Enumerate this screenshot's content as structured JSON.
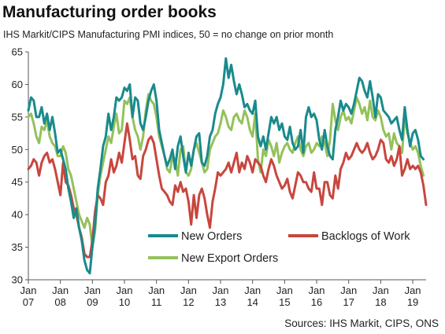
{
  "title": "Manufacturing order books",
  "subtitle": "IHS Markit/CIPS Manufacturing PMI indices, 50 = no change on prior month",
  "source": "Sources: IHS Markit, CIPS, ONS",
  "chart_data": {
    "type": "line",
    "title": "Manufacturing order books",
    "subtitle": "IHS Markit/CIPS Manufacturing PMI indices, 50 = no change on prior month",
    "xlabel": "",
    "ylabel": "",
    "ylim": [
      30,
      65
    ],
    "yticks": [
      30,
      35,
      40,
      45,
      50,
      55,
      60,
      65
    ],
    "x_start": "2007-01",
    "x_end": "2019-06",
    "x_ticks": [
      {
        "top": "Jan",
        "bottom": "07"
      },
      {
        "top": "Jan",
        "bottom": "08"
      },
      {
        "top": "Jan",
        "bottom": "09"
      },
      {
        "top": "Jan",
        "bottom": "10"
      },
      {
        "top": "Jan",
        "bottom": "11"
      },
      {
        "top": "Jan",
        "bottom": "12"
      },
      {
        "top": "Jan",
        "bottom": "13"
      },
      {
        "top": "Jan",
        "bottom": "14"
      },
      {
        "top": "Jan",
        "bottom": "15"
      },
      {
        "top": "Jan",
        "bottom": "16"
      },
      {
        "top": "Jan",
        "bottom": "17"
      },
      {
        "top": "Jan",
        "bottom": "18"
      },
      {
        "top": "Jan",
        "bottom": "19"
      }
    ],
    "grid": false,
    "legend": "bottom-center",
    "series": [
      {
        "name": "New Orders",
        "color": "#1a8a8c",
        "values": [
          56.0,
          58.0,
          57.5,
          55.0,
          55.0,
          56.5,
          54.0,
          55.5,
          53.0,
          55.0,
          52.5,
          49.5,
          50.0,
          48.5,
          47.0,
          44.0,
          42.0,
          39.5,
          41.0,
          38.0,
          36.0,
          33.0,
          31.5,
          31.0,
          35.0,
          38.5,
          44.0,
          47.0,
          50.5,
          52.0,
          55.5,
          53.0,
          55.0,
          58.0,
          57.5,
          58.0,
          59.5,
          59.0,
          60.0,
          55.0,
          58.0,
          57.5,
          54.0,
          53.0,
          55.0,
          57.5,
          59.0,
          60.0,
          57.5,
          53.0,
          51.0,
          49.0,
          47.5,
          48.5,
          50.0,
          47.0,
          50.5,
          52.0,
          49.0,
          46.5,
          49.5,
          47.5,
          50.0,
          52.0,
          52.5,
          48.0,
          47.5,
          49.0,
          52.0,
          53.0,
          55.5,
          57.0,
          58.0,
          60.0,
          64.0,
          61.0,
          63.0,
          60.5,
          58.5,
          60.0,
          58.5,
          56.5,
          57.0,
          56.0,
          55.5,
          57.5,
          52.0,
          50.5,
          52.0,
          50.0,
          52.5,
          55.0,
          54.0,
          55.0,
          53.0,
          54.0,
          52.0,
          51.5,
          53.5,
          51.0,
          50.0,
          50.5,
          53.0,
          49.5,
          55.0,
          56.5,
          55.0,
          55.5,
          54.5,
          51.5,
          50.0,
          53.0,
          50.5,
          49.0,
          48.5,
          53.0,
          55.0,
          57.5,
          56.0,
          57.0,
          56.5,
          55.5,
          57.0,
          59.0,
          61.0,
          60.5,
          59.0,
          58.0,
          60.5,
          58.0,
          55.0,
          58.5,
          58.0,
          56.0,
          55.5,
          55.0,
          54.0,
          54.5,
          55.0,
          53.0,
          51.5,
          56.5,
          53.0,
          50.5,
          52.5,
          53.0,
          51.5,
          49.0,
          48.5
        ]
      },
      {
        "name": "Backlogs of Work",
        "color": "#c8463e",
        "values": [
          47.0,
          47.5,
          48.5,
          48.0,
          46.0,
          48.0,
          49.0,
          49.5,
          48.0,
          48.5,
          47.0,
          45.0,
          43.0,
          48.0,
          45.0,
          44.5,
          43.0,
          41.0,
          40.0,
          38.0,
          36.5,
          34.0,
          33.5,
          33.5,
          36.0,
          40.5,
          43.0,
          42.5,
          41.5,
          45.0,
          46.0,
          48.5,
          46.5,
          47.5,
          49.5,
          48.0,
          51.0,
          54.0,
          51.5,
          48.5,
          49.0,
          46.0,
          45.5,
          49.0,
          50.0,
          51.5,
          52.0,
          51.0,
          48.5,
          46.0,
          44.0,
          43.5,
          43.0,
          42.0,
          41.5,
          44.5,
          43.5,
          45.0,
          43.5,
          44.0,
          42.0,
          38.5,
          43.0,
          39.5,
          43.0,
          44.0,
          42.5,
          40.0,
          38.0,
          42.0,
          44.0,
          46.5,
          46.0,
          46.5,
          47.0,
          48.0,
          46.5,
          48.0,
          49.5,
          46.5,
          48.0,
          47.0,
          49.0,
          48.0,
          46.5,
          48.5,
          48.0,
          47.5,
          46.0,
          45.0,
          47.0,
          48.5,
          47.5,
          46.0,
          45.0,
          44.0,
          44.5,
          45.5,
          43.5,
          42.5,
          44.5,
          46.5,
          46.0,
          45.0,
          45.0,
          44.0,
          43.5,
          46.5,
          44.0,
          44.0,
          41.5,
          45.0,
          45.0,
          43.0,
          42.5,
          46.0,
          44.0,
          47.0,
          48.0,
          49.5,
          48.5,
          49.0,
          50.0,
          51.0,
          50.0,
          49.5,
          50.0,
          51.0,
          49.5,
          48.5,
          49.0,
          50.0,
          51.5,
          51.0,
          48.5,
          48.0,
          49.0,
          47.5,
          48.5,
          50.5,
          46.0,
          47.0,
          48.5,
          47.0,
          47.5,
          47.0,
          47.5,
          46.5,
          44.5,
          41.5
        ]
      },
      {
        "name": "New Export Orders",
        "color": "#94c15b",
        "values": [
          55.0,
          55.5,
          54.0,
          52.0,
          51.0,
          53.5,
          53.0,
          54.5,
          52.0,
          51.0,
          50.5,
          49.0,
          49.0,
          50.5,
          49.5,
          47.0,
          46.0,
          44.0,
          42.0,
          40.0,
          39.0,
          38.0,
          39.5,
          38.5,
          35.0,
          37.5,
          43.0,
          46.0,
          48.0,
          50.0,
          52.0,
          51.0,
          53.5,
          55.5,
          52.5,
          53.0,
          57.5,
          57.0,
          58.0,
          55.0,
          53.0,
          52.0,
          50.0,
          52.0,
          56.0,
          58.5,
          57.5,
          57.0,
          55.0,
          52.0,
          50.5,
          49.0,
          47.0,
          46.5,
          49.0,
          48.5,
          46.0,
          50.0,
          50.5,
          46.5,
          46.0,
          47.0,
          50.0,
          51.0,
          49.5,
          48.0,
          46.5,
          47.0,
          50.0,
          51.0,
          52.0,
          52.5,
          54.0,
          56.0,
          55.0,
          53.5,
          53.0,
          55.0,
          55.5,
          54.5,
          54.0,
          56.0,
          55.0,
          53.0,
          52.0,
          55.5,
          48.5,
          46.5,
          50.0,
          49.0,
          51.5,
          50.5,
          49.0,
          51.0,
          48.0,
          49.5,
          50.5,
          51.0,
          50.0,
          49.5,
          51.0,
          52.0,
          50.0,
          49.0,
          50.5,
          51.0,
          49.5,
          50.0,
          51.0,
          50.5,
          52.0,
          51.0,
          49.0,
          51.5,
          57.0,
          54.5,
          53.0,
          55.0,
          56.0,
          54.5,
          55.0,
          54.0,
          56.0,
          58.0,
          57.0,
          55.5,
          56.5,
          54.5,
          57.5,
          55.0,
          54.5,
          56.0,
          55.0,
          53.0,
          52.0,
          52.5,
          50.0,
          52.5,
          51.0,
          50.5,
          49.5,
          55.0,
          52.5,
          51.0,
          50.0,
          50.5,
          49.5,
          47.5,
          46.0
        ]
      }
    ]
  }
}
